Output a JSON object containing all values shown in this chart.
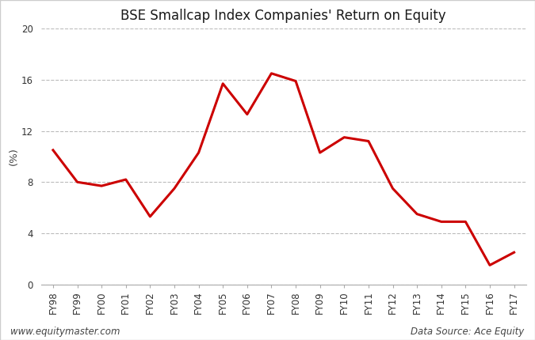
{
  "title": "BSE Smallcap Index Companies' Return on Equity",
  "ylabel": "(%)",
  "categories": [
    "FY98",
    "FY99",
    "FY00",
    "FY01",
    "FY02",
    "FY03",
    "FY04",
    "FY05",
    "FY06",
    "FY07",
    "FY08",
    "FY09",
    "FY10",
    "FY11",
    "FY12",
    "FY13",
    "FY14",
    "FY15",
    "FY16",
    "FY17"
  ],
  "values": [
    10.5,
    8.0,
    7.7,
    8.2,
    5.3,
    7.5,
    10.3,
    15.7,
    13.3,
    16.5,
    15.9,
    10.3,
    11.5,
    11.2,
    7.5,
    5.5,
    4.9,
    4.9,
    1.5,
    2.5
  ],
  "line_color": "#cc0000",
  "line_width": 2.2,
  "ylim": [
    0,
    20
  ],
  "yticks": [
    0,
    4,
    8,
    12,
    16,
    20
  ],
  "grid_color": "#bbbbbb",
  "background_color": "#ffffff",
  "title_color": "#1a1a1a",
  "axis_label_color": "#444444",
  "tick_color": "#333333",
  "footer_left": "www.equitymaster.com",
  "footer_right": "Data Source: Ace Equity",
  "title_fontsize": 12,
  "label_fontsize": 9.5,
  "tick_fontsize": 8.5,
  "footer_fontsize": 8.5,
  "border_color": "#cccccc"
}
